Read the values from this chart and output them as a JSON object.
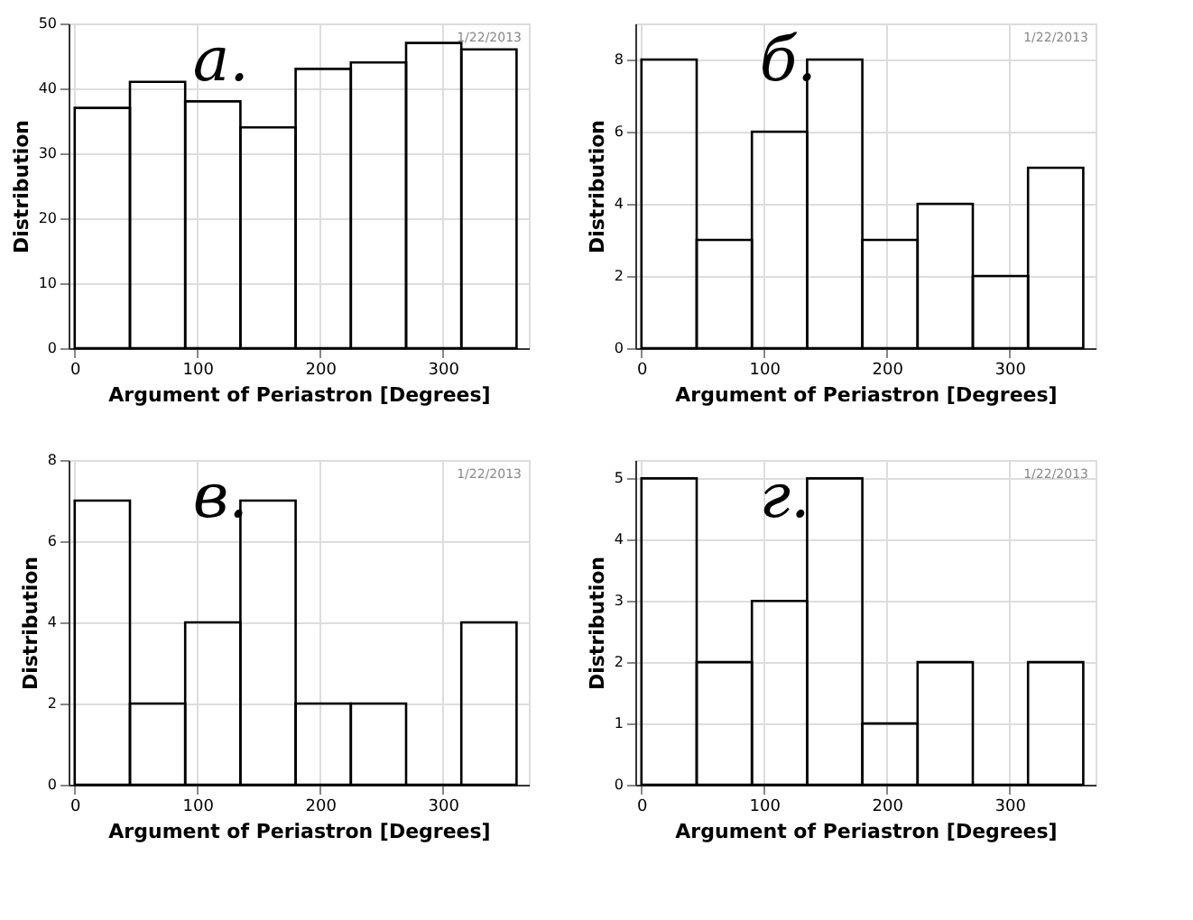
{
  "chart_data": [
    {
      "type": "histogram",
      "xlabel": "Argument of Periastron [Degrees]",
      "ylabel": "Distribution",
      "annotations": [
        "а.",
        "1/22/2013"
      ],
      "bins": [
        0,
        45,
        90,
        135,
        180,
        225,
        270,
        315,
        360
      ],
      "values": [
        37,
        41,
        38,
        34,
        43,
        44,
        47,
        46
      ],
      "color": "#000000",
      "xlim": [
        -5,
        370
      ],
      "xticks": [
        0,
        100,
        200,
        300
      ],
      "ylim": [
        0,
        50
      ],
      "yticks": [
        0,
        10,
        20,
        30,
        40,
        50
      ],
      "grid": true
    },
    {
      "type": "histogram",
      "xlabel": "Argument of Periastron [Degrees]",
      "ylabel": "Distribution",
      "annotations": [
        "б.",
        "1/22/2013"
      ],
      "bins": [
        0,
        45,
        90,
        135,
        180,
        225,
        270,
        315,
        360
      ],
      "values": [
        8,
        3,
        6,
        8,
        3,
        4,
        2,
        5
      ],
      "color": "#000000",
      "xlim": [
        -5,
        370
      ],
      "xticks": [
        0,
        100,
        200,
        300
      ],
      "ylim": [
        0,
        9
      ],
      "yticks": [
        0,
        2,
        4,
        6,
        8
      ],
      "grid": true
    },
    {
      "type": "histogram",
      "xlabel": "Argument of Periastron [Degrees]",
      "ylabel": "Distribution",
      "annotations": [
        "в.",
        "1/22/2013"
      ],
      "bins": [
        0,
        45,
        90,
        135,
        180,
        225,
        270,
        315,
        360
      ],
      "values": [
        7,
        2,
        4,
        7,
        2,
        2,
        0,
        4
      ],
      "color": "#000000",
      "xlim": [
        -5,
        370
      ],
      "xticks": [
        0,
        100,
        200,
        300
      ],
      "ylim": [
        0,
        8
      ],
      "yticks": [
        0,
        2,
        4,
        6,
        8
      ],
      "grid": true
    },
    {
      "type": "histogram",
      "xlabel": "Argument of Periastron [Degrees]",
      "ylabel": "Distribution",
      "annotations": [
        "г.",
        "1/22/2013"
      ],
      "bins": [
        0,
        45,
        90,
        135,
        180,
        225,
        270,
        315,
        360
      ],
      "values": [
        5,
        2,
        3,
        5,
        1,
        2,
        0,
        2
      ],
      "color": "#000000",
      "xlim": [
        -5,
        370
      ],
      "xticks": [
        0,
        100,
        200,
        300
      ],
      "ylim": [
        0,
        5.3
      ],
      "yticks": [
        0,
        1,
        2,
        3,
        4,
        5
      ],
      "grid": true
    }
  ]
}
